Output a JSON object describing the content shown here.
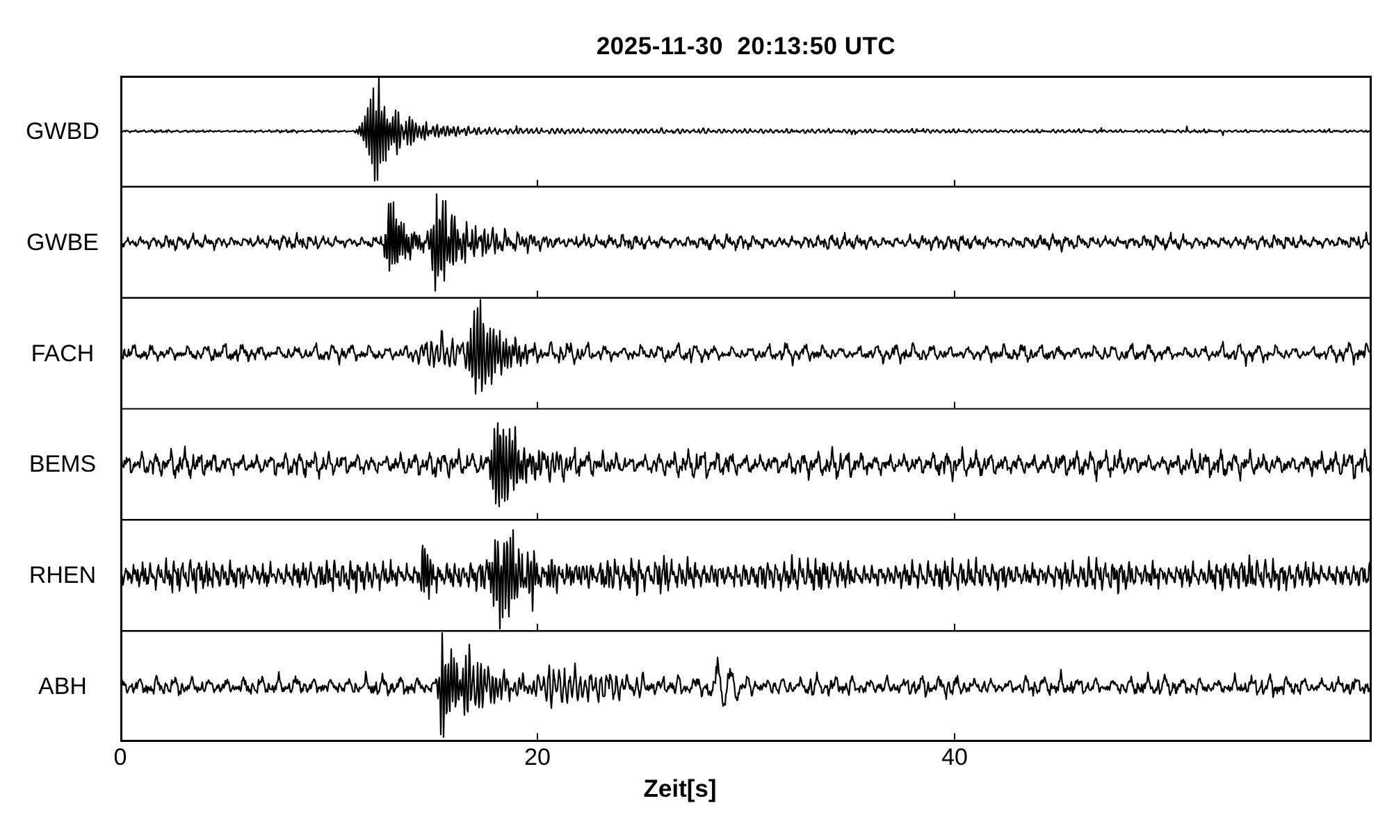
{
  "title": "2025-11-30  20:13:50 UTC",
  "xlabel": "Zeit[s]",
  "chart_data": {
    "type": "line",
    "title": "2025-11-30  20:13:50 UTC",
    "xlabel": "Zeit[s]",
    "ylabel": "",
    "xlim": [
      0,
      60
    ],
    "x_ticks": [
      0,
      20,
      40
    ],
    "x_tick_labels": [
      "0",
      "20",
      "40"
    ],
    "grid": false,
    "legend": "none",
    "background": "#ffffff",
    "axis_color": "#000000",
    "trace_color": "#000000",
    "stations": [
      "GWBD",
      "GWBE",
      "FACH",
      "BEMS",
      "RHEN",
      "ABH"
    ],
    "series": [
      {
        "name": "GWBD",
        "seed": 11,
        "noise_amp": 1.3,
        "noise_freq": 5.0,
        "spikes": {
          "prob": 0.004,
          "amp": 5
        },
        "bursts": [
          {
            "t": 12.3,
            "rise": 0.9,
            "fall": 0.7,
            "amp": 74,
            "freq": 7.5
          },
          {
            "t": 13.4,
            "rise": 0.5,
            "fall": 1.8,
            "amp": 20,
            "freq": 6.0
          },
          {
            "t": 15.0,
            "rise": 1.5,
            "fall": 30.0,
            "amp": 3.5,
            "freq": 4.0
          }
        ],
        "event_onset_s": 10.7,
        "peak_time_s": 12.3
      },
      {
        "name": "GWBE",
        "seed": 22,
        "noise_amp": 7.5,
        "noise_freq": 3.2,
        "bursts": [
          {
            "t": 12.9,
            "rise": 0.35,
            "fall": 0.8,
            "amp": 54,
            "freq": 8.0
          },
          {
            "t": 15.1,
            "rise": 0.4,
            "fall": 1.1,
            "amp": 72,
            "freq": 7.0
          },
          {
            "t": 16.0,
            "rise": 1.0,
            "fall": 3.0,
            "amp": 16,
            "freq": 5.0
          }
        ],
        "event_onset_s": 12.6,
        "peak_time_s": 15.1
      },
      {
        "name": "FACH",
        "seed": 33,
        "noise_amp": 9.0,
        "noise_freq": 2.3,
        "bursts": [
          {
            "t": 15.5,
            "rise": 2.5,
            "fall": 3.0,
            "amp": 18,
            "freq": 4.0
          },
          {
            "t": 17.2,
            "rise": 0.8,
            "fall": 1.0,
            "amp": 70,
            "freq": 6.5
          }
        ],
        "event_onset_s": 13.5,
        "peak_time_s": 17.2
      },
      {
        "name": "BEMS",
        "seed": 44,
        "noise_amp": 13.0,
        "noise_freq": 2.9,
        "bursts": [
          {
            "t": 18.1,
            "rise": 0.5,
            "fall": 1.0,
            "amp": 72,
            "freq": 7.0
          },
          {
            "t": 19.0,
            "rise": 0.8,
            "fall": 2.5,
            "amp": 18,
            "freq": 4.5
          }
        ],
        "event_onset_s": 17.5,
        "peak_time_s": 18.1
      },
      {
        "name": "RHEN",
        "seed": 55,
        "noise_amp": 16.0,
        "noise_freq": 5.2,
        "bursts": [
          {
            "t": 14.5,
            "rise": 0.15,
            "fall": 0.4,
            "amp": 52,
            "freq": 8.0
          },
          {
            "t": 18.3,
            "rise": 0.9,
            "fall": 1.3,
            "amp": 64,
            "freq": 7.0
          },
          {
            "t": 19.5,
            "rise": 1.0,
            "fall": 10.0,
            "amp": 10,
            "freq": 6.0
          }
        ],
        "event_onset_s": 14.5,
        "peak_time_s": 18.3
      },
      {
        "name": "ABH",
        "seed": 66,
        "noise_amp": 10.0,
        "noise_freq": 2.4,
        "bursts": [
          {
            "t": 15.4,
            "rise": 0.25,
            "fall": 0.9,
            "amp": 74,
            "freq": 7.0
          },
          {
            "t": 16.8,
            "rise": 0.6,
            "fall": 1.6,
            "amp": 36,
            "freq": 5.5
          },
          {
            "t": 20.8,
            "rise": 1.5,
            "fall": 3.0,
            "amp": 22,
            "freq": 4.0
          },
          {
            "t": 24.0,
            "rise": 2.0,
            "fall": 25.0,
            "amp": 6,
            "freq": 3.0
          },
          {
            "t": 28.5,
            "rise": 0.3,
            "fall": 0.8,
            "amp": 40,
            "freq": 1.6
          }
        ],
        "event_onset_s": 15.2,
        "peak_time_s": 15.4
      }
    ]
  }
}
